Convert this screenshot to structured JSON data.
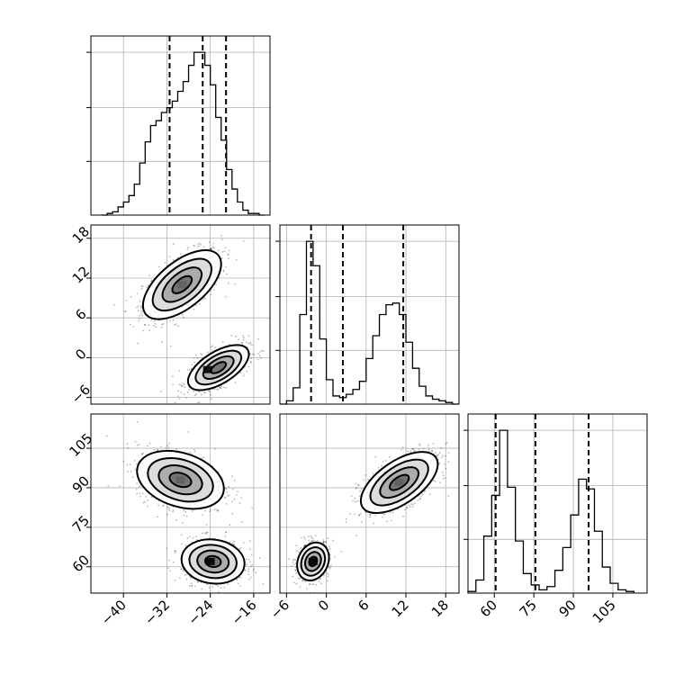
{
  "chart_data": [
    {
      "type": "histogram",
      "parameter": 0,
      "xlim": [
        -46,
        -13
      ],
      "ylim": [
        0,
        1.0
      ],
      "bin_edges": [
        -44,
        -43,
        -42,
        -41,
        -40,
        -39,
        -38,
        -37,
        -36,
        -35,
        -34,
        -33,
        -32,
        -31,
        -30,
        -29,
        -28,
        -27,
        -26,
        -25,
        -24,
        -23,
        -22,
        -21,
        -20,
        -19,
        -18,
        -17,
        -16,
        -15,
        -14
      ],
      "counts": [
        0.0,
        0.01,
        0.02,
        0.05,
        0.08,
        0.12,
        0.19,
        0.32,
        0.45,
        0.55,
        0.58,
        0.63,
        0.66,
        0.7,
        0.76,
        0.82,
        0.92,
        1.0,
        1.0,
        0.92,
        0.8,
        0.6,
        0.46,
        0.28,
        0.16,
        0.08,
        0.03,
        0.01,
        0.01,
        0.0
      ],
      "quantiles": [
        -31.5,
        -25.4,
        -21.1
      ]
    },
    {
      "type": "histogram",
      "parameter": 1,
      "xlim": [
        -7,
        20
      ],
      "ylim": [
        0,
        1.0
      ],
      "bin_edges": [
        -7,
        -6,
        -5,
        -4,
        -3,
        -2,
        -1,
        0,
        1,
        2,
        3,
        4,
        5,
        6,
        7,
        8,
        9,
        10,
        11,
        12,
        13,
        14,
        15,
        16,
        17,
        18,
        19,
        20
      ],
      "counts": [
        0.0,
        0.02,
        0.1,
        0.55,
        1.0,
        0.85,
        0.4,
        0.15,
        0.05,
        0.04,
        0.06,
        0.09,
        0.14,
        0.28,
        0.42,
        0.55,
        0.61,
        0.62,
        0.55,
        0.38,
        0.22,
        0.11,
        0.05,
        0.03,
        0.02,
        0.01,
        0.0
      ],
      "quantiles": [
        -2.3,
        2.5,
        11.6
      ]
    },
    {
      "type": "histogram",
      "parameter": 2,
      "xlim": [
        50,
        118
      ],
      "ylim": [
        0,
        1.0
      ],
      "bin_edges": [
        50,
        53,
        56,
        59,
        62,
        65,
        68,
        71,
        74,
        77,
        80,
        83,
        86,
        89,
        92,
        95,
        98,
        101,
        104,
        107,
        110,
        113
      ],
      "counts": [
        0.01,
        0.08,
        0.35,
        0.6,
        1.0,
        0.65,
        0.32,
        0.12,
        0.05,
        0.02,
        0.04,
        0.14,
        0.28,
        0.48,
        0.7,
        0.64,
        0.38,
        0.16,
        0.06,
        0.02,
        0.01
      ],
      "quantiles": [
        60.5,
        75.6,
        95.8
      ]
    },
    {
      "type": "scatter",
      "parameters": [
        0,
        1
      ],
      "xlim": [
        -46,
        -13
      ],
      "ylim": [
        -7,
        20
      ],
      "blobs": [
        {
          "cx": -29.2,
          "cy": 11.0,
          "sx": 3.6,
          "sy": 2.6,
          "rho": 0.6,
          "n": 900
        },
        {
          "cx": -22.5,
          "cy": -1.5,
          "sx": 2.8,
          "sy": 1.7,
          "rho": 0.6,
          "n": 700
        }
      ],
      "density_peaks": [
        [
          -29.2,
          11.0
        ],
        [
          -24.5,
          -1.8
        ]
      ]
    },
    {
      "type": "scatter",
      "parameters": [
        0,
        2
      ],
      "xlim": [
        -46,
        -13
      ],
      "ylim": [
        50,
        118
      ],
      "blobs": [
        {
          "cx": -29.5,
          "cy": 93.0,
          "sx": 4.0,
          "sy": 5.5,
          "rho": -0.3,
          "n": 900
        },
        {
          "cx": -23.5,
          "cy": 62.0,
          "sx": 2.9,
          "sy": 4.2,
          "rho": -0.1,
          "n": 700
        }
      ],
      "density_peaks": [
        [
          -29.5,
          93.0
        ],
        [
          -24.0,
          62.0
        ]
      ]
    },
    {
      "type": "scatter",
      "parameters": [
        1,
        2
      ],
      "xlim": [
        -7,
        20
      ],
      "ylim": [
        50,
        118
      ],
      "blobs": [
        {
          "cx": 11.0,
          "cy": 92.0,
          "sx": 2.9,
          "sy": 5.8,
          "rho": 0.6,
          "n": 900
        },
        {
          "cx": -2.0,
          "cy": 62.0,
          "sx": 1.2,
          "sy": 3.6,
          "rho": 0.2,
          "n": 700
        }
      ],
      "density_peaks": [
        [
          11.0,
          92.0
        ],
        [
          -2.0,
          62.0
        ]
      ]
    }
  ],
  "ticks": {
    "p0": [
      "-40",
      "-32",
      "-24",
      "-16"
    ],
    "p1": [
      "-6",
      "0",
      "6",
      "12",
      "18"
    ],
    "p2": [
      "60",
      "75",
      "90",
      "105"
    ]
  }
}
